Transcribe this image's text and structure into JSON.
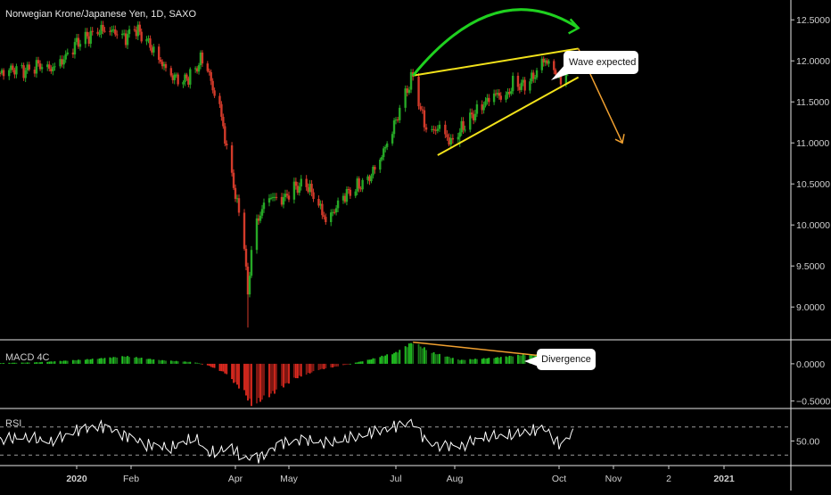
{
  "header": {
    "title": "Norwegian Krone/Japanese Yen, 1D, SAXO"
  },
  "annotations": {
    "wave_expected": "Wave expected",
    "divergence": "Divergence"
  },
  "colors": {
    "up": "#26a826",
    "down": "#d23a2a",
    "wedge": "#f2e21a",
    "arc": "#1fd11f",
    "forecast": "#f0a030",
    "rsi_line": "#ffffff",
    "axis_text": "#cfcfcf"
  },
  "chart_data": [
    {
      "type": "candlestick",
      "title": "Norwegian Krone/Japanese Yen, 1D, SAXO",
      "x_tick_labels": [
        "2020",
        "Feb",
        "Apr",
        "May",
        "Jul",
        "Aug",
        "Oct",
        "Nov",
        "2",
        "2021"
      ],
      "y_tick_labels": [
        "12.5000",
        "12.0000",
        "11.5000",
        "11.0000",
        "10.5000",
        "10.0000",
        "9.5000",
        "9.0000"
      ],
      "ylim": [
        8.6,
        12.72
      ],
      "close_path": [
        [
          "2019-11-20",
          11.85
        ],
        [
          "2019-11-27",
          11.9
        ],
        [
          "2019-12-04",
          11.88
        ],
        [
          "2019-12-11",
          11.95
        ],
        [
          "2019-12-18",
          11.9
        ],
        [
          "2019-12-25",
          12.02
        ],
        [
          "2020-01-01",
          12.22
        ],
        [
          "2020-01-08",
          12.3
        ],
        [
          "2020-01-15",
          12.38
        ],
        [
          "2020-01-22",
          12.36
        ],
        [
          "2020-01-29",
          12.28
        ],
        [
          "2020-02-03",
          12.4
        ],
        [
          "2020-02-10",
          12.25
        ],
        [
          "2020-02-17",
          12.02
        ],
        [
          "2020-02-24",
          11.82
        ],
        [
          "2020-03-02",
          11.75
        ],
        [
          "2020-03-09",
          11.88
        ],
        [
          "2020-03-12",
          12.02
        ],
        [
          "2020-03-16",
          11.92
        ],
        [
          "2020-03-19",
          11.65
        ],
        [
          "2020-03-23",
          11.45
        ],
        [
          "2020-03-26",
          11.05
        ],
        [
          "2020-03-30",
          10.6
        ],
        [
          "2020-04-02",
          10.25
        ],
        [
          "2020-04-06",
          9.8
        ],
        [
          "2020-04-08",
          9.1
        ],
        [
          "2020-04-10",
          9.75
        ],
        [
          "2020-04-15",
          10.15
        ],
        [
          "2020-04-20",
          10.35
        ],
        [
          "2020-04-27",
          10.3
        ],
        [
          "2020-05-04",
          10.45
        ],
        [
          "2020-05-11",
          10.5
        ],
        [
          "2020-05-18",
          10.25
        ],
        [
          "2020-05-22",
          10.05
        ],
        [
          "2020-05-26",
          10.15
        ],
        [
          "2020-06-01",
          10.35
        ],
        [
          "2020-06-08",
          10.45
        ],
        [
          "2020-06-15",
          10.55
        ],
        [
          "2020-06-22",
          10.8
        ],
        [
          "2020-06-29",
          11.15
        ],
        [
          "2020-07-06",
          11.6
        ],
        [
          "2020-07-10",
          11.82
        ],
        [
          "2020-07-14",
          11.4
        ],
        [
          "2020-07-18",
          11.1
        ],
        [
          "2020-07-24",
          11.2
        ],
        [
          "2020-07-30",
          11.0
        ],
        [
          "2020-08-04",
          11.15
        ],
        [
          "2020-08-10",
          11.3
        ],
        [
          "2020-08-17",
          11.45
        ],
        [
          "2020-08-24",
          11.6
        ],
        [
          "2020-08-31",
          11.55
        ],
        [
          "2020-09-04",
          11.72
        ],
        [
          "2020-09-10",
          11.7
        ],
        [
          "2020-09-16",
          11.8
        ],
        [
          "2020-09-22",
          12.02
        ],
        [
          "2020-09-28",
          11.9
        ],
        [
          "2020-10-02",
          11.75
        ],
        [
          "2020-10-06",
          11.95
        ],
        [
          "2020-10-09",
          12.05
        ]
      ],
      "low_spikes": [
        [
          "2020-04-08",
          8.75
        ],
        [
          "2020-08-04",
          10.95
        ]
      ],
      "wedge_lines": [
        [
          [
            "2020-07-10",
            11.82
          ],
          [
            "2020-10-12",
            12.15
          ]
        ],
        [
          [
            "2020-07-23",
            10.85
          ],
          [
            "2020-10-12",
            11.8
          ]
        ]
      ],
      "forecast_arc": [
        [
          "2020-07-10",
          11.82
        ],
        [
          "2020-10-12",
          12.4
        ]
      ],
      "forecast_arrow": [
        [
          "2020-10-12",
          12.15
        ],
        [
          "2020-11-06",
          11.0
        ]
      ]
    },
    {
      "type": "bar",
      "title": "MACD 4C",
      "y_tick_labels": [
        "0.0000",
        "−0.5000"
      ],
      "ylim": [
        -0.6,
        0.31
      ],
      "histogram_path": [
        [
          "2019-11-20",
          0.01
        ],
        [
          "2019-12-11",
          0.02
        ],
        [
          "2020-01-08",
          0.06
        ],
        [
          "2020-01-29",
          0.1
        ],
        [
          "2020-02-17",
          0.05
        ],
        [
          "2020-03-09",
          0.02
        ],
        [
          "2020-03-16",
          -0.02
        ],
        [
          "2020-03-26",
          -0.12
        ],
        [
          "2020-04-06",
          -0.38
        ],
        [
          "2020-04-10",
          -0.55
        ],
        [
          "2020-04-20",
          -0.42
        ],
        [
          "2020-05-04",
          -0.2
        ],
        [
          "2020-05-18",
          -0.08
        ],
        [
          "2020-06-01",
          -0.02
        ],
        [
          "2020-06-15",
          0.05
        ],
        [
          "2020-07-01",
          0.15
        ],
        [
          "2020-07-10",
          0.29
        ],
        [
          "2020-07-20",
          0.15
        ],
        [
          "2020-08-04",
          0.05
        ],
        [
          "2020-08-24",
          0.08
        ],
        [
          "2020-09-10",
          0.12
        ],
        [
          "2020-09-28",
          0.12
        ],
        [
          "2020-10-09",
          0.1
        ]
      ],
      "divergence_line": [
        [
          "2020-07-10",
          0.29
        ],
        [
          "2020-10-14",
          0.05
        ]
      ]
    },
    {
      "type": "line",
      "title": "RSI",
      "y_tick_labels": [
        "50.00"
      ],
      "ylim": [
        15,
        95
      ],
      "bands": [
        70,
        30
      ],
      "series": [
        {
          "values": [
            [
              "2019-11-20",
              52
            ],
            [
              "2019-12-04",
              55
            ],
            [
              "2019-12-18",
              48
            ],
            [
              "2020-01-01",
              65
            ],
            [
              "2020-01-15",
              72
            ],
            [
              "2020-01-29",
              58
            ],
            [
              "2020-02-10",
              45
            ],
            [
              "2020-02-24",
              40
            ],
            [
              "2020-03-09",
              55
            ],
            [
              "2020-03-16",
              32
            ],
            [
              "2020-03-30",
              40
            ],
            [
              "2020-04-06",
              25
            ],
            [
              "2020-04-15",
              28
            ],
            [
              "2020-04-27",
              48
            ],
            [
              "2020-05-11",
              52
            ],
            [
              "2020-05-22",
              46
            ],
            [
              "2020-06-08",
              55
            ],
            [
              "2020-06-22",
              65
            ],
            [
              "2020-07-10",
              78
            ],
            [
              "2020-07-18",
              46
            ],
            [
              "2020-08-04",
              42
            ],
            [
              "2020-08-17",
              55
            ],
            [
              "2020-09-04",
              58
            ],
            [
              "2020-09-22",
              68
            ],
            [
              "2020-10-02",
              44
            ],
            [
              "2020-10-09",
              62
            ]
          ]
        }
      ]
    }
  ]
}
